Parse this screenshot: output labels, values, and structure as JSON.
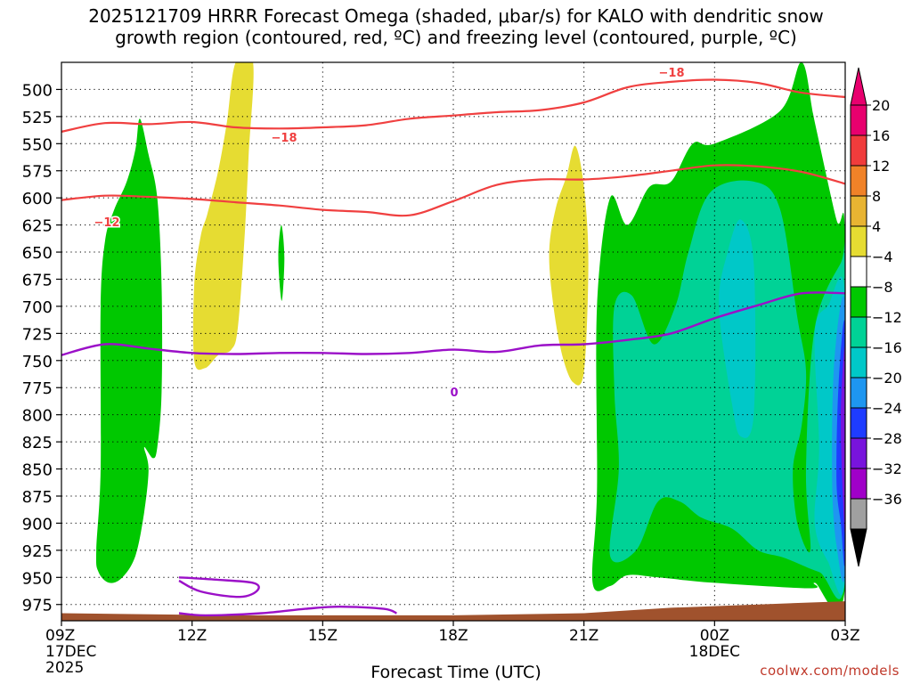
{
  "chart_data": {
    "type": "contour",
    "title_line1": "2025121709 HRRR Forecast Omega (shaded, μbar/s) for KALO with dendritic snow",
    "title_line2": "growth region (contoured, red, ºC) and freezing level (contoured, purple, ºC)",
    "xlabel": "Forecast Time (UTC)",
    "credit": "coolwx.com/models",
    "x_range_hours": [
      0,
      18
    ],
    "y_range_mb": [
      475,
      990
    ],
    "y_ticks": [
      "500",
      "525",
      "550",
      "575",
      "600",
      "625",
      "650",
      "675",
      "700",
      "725",
      "750",
      "775",
      "800",
      "825",
      "850",
      "875",
      "900",
      "925",
      "950",
      "975"
    ],
    "y_tick_values": [
      500,
      525,
      550,
      575,
      600,
      625,
      650,
      675,
      700,
      725,
      750,
      775,
      800,
      825,
      850,
      875,
      900,
      925,
      950,
      975
    ],
    "x_ticks": [
      {
        "h": 0,
        "line1": "09Z",
        "line2": "17DEC",
        "line3": "2025"
      },
      {
        "h": 3,
        "line1": "12Z",
        "line2": "",
        "line3": ""
      },
      {
        "h": 6,
        "line1": "15Z",
        "line2": "",
        "line3": ""
      },
      {
        "h": 9,
        "line1": "18Z",
        "line2": "",
        "line3": ""
      },
      {
        "h": 12,
        "line1": "21Z",
        "line2": "",
        "line3": ""
      },
      {
        "h": 15,
        "line1": "00Z",
        "line2": "18DEC",
        "line3": ""
      },
      {
        "h": 18,
        "line1": "03Z",
        "line2": "",
        "line3": ""
      }
    ],
    "colorbar_labels": [
      "20",
      "16",
      "12",
      "8",
      "4",
      "−4",
      "−8",
      "−12",
      "−16",
      "−20",
      "−24",
      "−28",
      "−32",
      "−36"
    ],
    "colorbar_values": [
      20,
      16,
      12,
      8,
      4,
      -4,
      -8,
      -12,
      -16,
      -20,
      -24,
      -28,
      -32,
      -36
    ],
    "colors": {
      "c20": "#e8006e",
      "c16": "#f03c3c",
      "c12": "#f08228",
      "c8": "#e8b432",
      "c4": "#e6dc32",
      "neutral": "#ffffff",
      "m4": "#00c800",
      "m8": "#00d296",
      "m12": "#00c8c8",
      "m16": "#1e96f0",
      "m20": "#1e3cff",
      "m24": "#7814dc",
      "m28": "#a000c8",
      "m32": "#a0a0a0",
      "m36": "#000000",
      "dgz": "#f04040",
      "freezing": "#9b10c8",
      "terrain": "#a0522d"
    },
    "isotherm_labels": {
      "t_minus18_a": "−18",
      "t_minus18_b": "−18",
      "t_minus12": "−12",
      "t_zero": "0"
    },
    "isotherms": {
      "minus18": [
        [
          0,
          539
        ],
        [
          1,
          531
        ],
        [
          2,
          532
        ],
        [
          3,
          530
        ],
        [
          4,
          535
        ],
        [
          5,
          536
        ],
        [
          6,
          535
        ],
        [
          7,
          533
        ],
        [
          8,
          527
        ],
        [
          9,
          524
        ],
        [
          10,
          521
        ],
        [
          11,
          519
        ],
        [
          12,
          512
        ],
        [
          13,
          498
        ],
        [
          14,
          493
        ],
        [
          15,
          491
        ],
        [
          16,
          494
        ],
        [
          17,
          503
        ],
        [
          18,
          507
        ]
      ],
      "minus12": [
        [
          0,
          602
        ],
        [
          1,
          598
        ],
        [
          2,
          599
        ],
        [
          3,
          601
        ],
        [
          4,
          604
        ],
        [
          5,
          607
        ],
        [
          6,
          611
        ],
        [
          7,
          613
        ],
        [
          8,
          616
        ],
        [
          9,
          603
        ],
        [
          10,
          588
        ],
        [
          11,
          583
        ],
        [
          12,
          583
        ],
        [
          13,
          580
        ],
        [
          14,
          575
        ],
        [
          15,
          570
        ],
        [
          16,
          571
        ],
        [
          17,
          576
        ],
        [
          18,
          587
        ]
      ],
      "zero": [
        [
          0,
          745
        ],
        [
          1,
          735
        ],
        [
          2,
          739
        ],
        [
          3,
          743
        ],
        [
          4,
          744
        ],
        [
          5,
          743
        ],
        [
          6,
          743
        ],
        [
          7,
          744
        ],
        [
          8,
          743
        ],
        [
          9,
          740
        ],
        [
          10,
          742
        ],
        [
          11,
          736
        ],
        [
          12,
          735
        ],
        [
          13,
          731
        ],
        [
          14,
          725
        ],
        [
          15,
          711
        ],
        [
          16,
          699
        ],
        [
          17,
          688
        ],
        [
          18,
          688
        ]
      ],
      "zero_low_a": [
        [
          2.7,
          950
        ],
        [
          3.5,
          952
        ],
        [
          4.4,
          955
        ],
        [
          4.5,
          962
        ],
        [
          4.1,
          968
        ],
        [
          3.2,
          963
        ],
        [
          2.7,
          953
        ]
      ],
      "zero_low_b": [
        [
          2.7,
          983
        ],
        [
          3.3,
          985
        ],
        [
          4.6,
          983
        ],
        [
          5.6,
          979
        ],
        [
          6.4,
          977
        ],
        [
          7.4,
          979
        ],
        [
          7.7,
          983
        ]
      ]
    },
    "omega_regions": [
      {
        "band": "m4",
        "pts": [
          [
            0.8,
            925
          ],
          [
            0.9,
            850
          ],
          [
            0.9,
            700
          ],
          [
            1.0,
            640
          ],
          [
            1.2,
            612
          ],
          [
            1.5,
            585
          ],
          [
            1.7,
            555
          ],
          [
            1.8,
            527
          ],
          [
            2.0,
            560
          ],
          [
            2.2,
            600
          ],
          [
            2.3,
            680
          ],
          [
            2.3,
            780
          ],
          [
            2.2,
            830
          ],
          [
            2.1,
            840
          ],
          [
            1.9,
            830
          ],
          [
            2.0,
            850
          ],
          [
            1.9,
            890
          ],
          [
            1.7,
            930
          ],
          [
            1.4,
            950
          ],
          [
            1.1,
            955
          ],
          [
            0.85,
            945
          ]
        ]
      },
      {
        "band": "c4",
        "pts": [
          [
            4.0,
            475
          ],
          [
            4.4,
            475
          ],
          [
            4.3,
            560
          ],
          [
            4.2,
            640
          ],
          [
            4.05,
            720
          ],
          [
            3.9,
            740
          ],
          [
            3.6,
            745
          ],
          [
            3.3,
            757
          ],
          [
            3.05,
            750
          ],
          [
            3.05,
            680
          ],
          [
            3.2,
            635
          ],
          [
            3.35,
            615
          ],
          [
            3.6,
            575
          ],
          [
            3.8,
            530
          ]
        ]
      },
      {
        "band": "m4",
        "pts": [
          [
            5.05,
            625
          ],
          [
            5.12,
            655
          ],
          [
            5.06,
            695
          ],
          [
            4.98,
            655
          ]
        ]
      },
      {
        "band": "c4",
        "pts": [
          [
            11.8,
            552
          ],
          [
            12.0,
            590
          ],
          [
            12.1,
            660
          ],
          [
            12.0,
            760
          ],
          [
            11.75,
            770
          ],
          [
            11.5,
            745
          ],
          [
            11.3,
            700
          ],
          [
            11.2,
            650
          ],
          [
            11.35,
            610
          ],
          [
            11.6,
            580
          ]
        ]
      },
      {
        "band": "m4",
        "pts": [
          [
            12.2,
            955
          ],
          [
            12.3,
            870
          ],
          [
            12.3,
            700
          ],
          [
            12.6,
            600
          ],
          [
            13.0,
            625
          ],
          [
            13.5,
            590
          ],
          [
            14.0,
            585
          ],
          [
            14.5,
            550
          ],
          [
            15.0,
            550
          ],
          [
            16.5,
            520
          ],
          [
            17.0,
            475
          ],
          [
            17.3,
            530
          ],
          [
            17.8,
            620
          ],
          [
            18,
            640
          ],
          [
            18,
            958
          ],
          [
            17.3,
            955
          ],
          [
            17.2,
            960
          ],
          [
            15.0,
            955
          ],
          [
            13.7,
            950
          ],
          [
            13.0,
            948
          ],
          [
            12.6,
            958
          ]
        ]
      },
      {
        "band": "m8",
        "pts": [
          [
            12.6,
            930
          ],
          [
            12.8,
            850
          ],
          [
            12.7,
            780
          ],
          [
            12.7,
            700
          ],
          [
            13.1,
            690
          ],
          [
            13.6,
            735
          ],
          [
            14.1,
            700
          ],
          [
            14.4,
            650
          ],
          [
            14.9,
            595
          ],
          [
            15.9,
            585
          ],
          [
            16.5,
            610
          ],
          [
            16.9,
            710
          ],
          [
            17.1,
            760
          ],
          [
            17.0,
            810
          ],
          [
            16.8,
            850
          ],
          [
            16.9,
            900
          ],
          [
            17.2,
            925
          ],
          [
            17.1,
            850
          ],
          [
            17.3,
            720
          ],
          [
            17.9,
            660
          ],
          [
            18,
            665
          ],
          [
            18,
            950
          ],
          [
            17.4,
            945
          ],
          [
            16.6,
            932
          ],
          [
            16.0,
            925
          ],
          [
            15.4,
            905
          ],
          [
            14.7,
            895
          ],
          [
            14.2,
            880
          ],
          [
            13.7,
            880
          ],
          [
            13.2,
            925
          ]
        ]
      },
      {
        "band": "m12",
        "pts": [
          [
            15.6,
            620
          ],
          [
            15.9,
            660
          ],
          [
            15.9,
            800
          ],
          [
            15.6,
            820
          ],
          [
            15.4,
            790
          ],
          [
            15.1,
            700
          ],
          [
            15.3,
            650
          ]
        ]
      },
      {
        "band": "m12",
        "pts": [
          [
            17.3,
            725
          ],
          [
            17.6,
            700
          ],
          [
            18,
            690
          ],
          [
            18,
            950
          ],
          [
            17.6,
            935
          ],
          [
            17.3,
            900
          ],
          [
            17.4,
            830
          ]
        ]
      },
      {
        "band": "m16",
        "pts": [
          [
            17.75,
            750
          ],
          [
            18,
            700
          ],
          [
            18,
            940
          ],
          [
            17.8,
            920
          ],
          [
            17.7,
            860
          ]
        ]
      },
      {
        "band": "m20",
        "pts": [
          [
            17.85,
            770
          ],
          [
            18,
            720
          ],
          [
            18,
            930
          ],
          [
            17.9,
            900
          ],
          [
            17.8,
            860
          ]
        ]
      },
      {
        "band": "m24",
        "pts": [
          [
            17.9,
            800
          ],
          [
            18,
            740
          ],
          [
            18,
            900
          ],
          [
            17.95,
            880
          ]
        ]
      }
    ],
    "terrain": [
      [
        0,
        983
      ],
      [
        4,
        985
      ],
      [
        6,
        985
      ],
      [
        9,
        985
      ],
      [
        12,
        983
      ],
      [
        14,
        978
      ],
      [
        16,
        975
      ],
      [
        18,
        972
      ]
    ]
  }
}
